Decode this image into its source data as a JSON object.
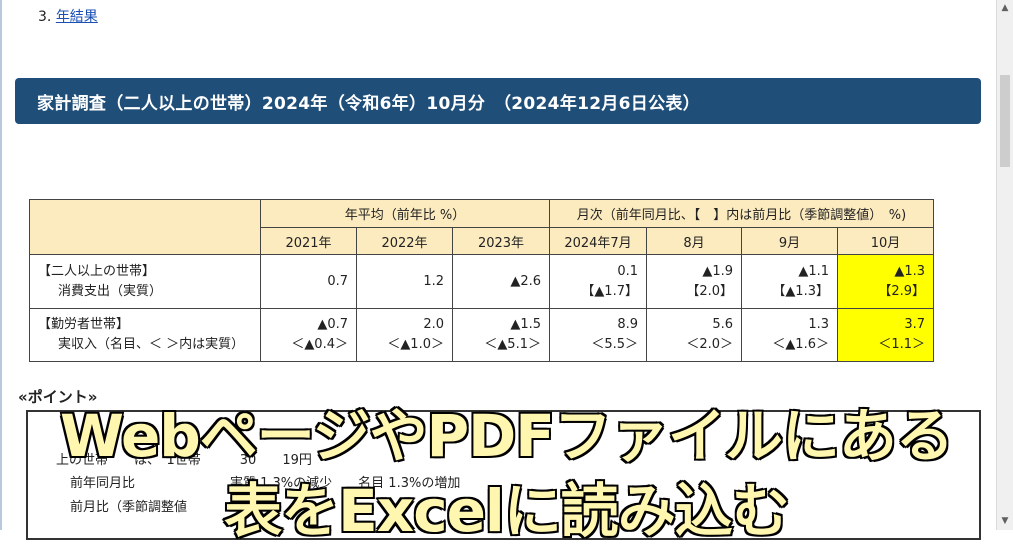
{
  "nav": {
    "number": "3.",
    "link": "年結果"
  },
  "banner": {
    "title": "家計調査（二人以上の世帯）2024年（令和6年）10月分　（2024年12月6日公表）"
  },
  "table": {
    "group_annual": "年平均（前年比 %）",
    "group_monthly": "月次（前年同月比、【　】内は前月比（季節調整値）　%)",
    "cols": [
      "2021年",
      "2022年",
      "2023年",
      "2024年7月",
      "8月",
      "9月",
      "10月"
    ],
    "rows": [
      {
        "label1": "【二人以上の世帯】",
        "label2": "消費支出（実質）",
        "vals": [
          "0.7",
          "1.2",
          "▲2.6",
          "0.1",
          "▲1.9",
          "▲1.1",
          "▲1.3"
        ],
        "subs": [
          "",
          "",
          "",
          "【▲1.7】",
          "【2.0】",
          "【▲1.3】",
          "【2.9】"
        ]
      },
      {
        "label1": "【勤労者世帯】",
        "label2": "実収入（名目、＜ ＞内は実質）",
        "vals": [
          "▲0.7",
          "2.0",
          "▲1.5",
          "8.9",
          "5.6",
          "1.3",
          "3.7"
        ],
        "subs": [
          "＜▲0.4＞",
          "＜▲1.0＞",
          "＜▲5.1＞",
          "＜5.5＞",
          "＜2.0＞",
          "＜▲1.6＞",
          "＜1.1＞"
        ]
      }
    ]
  },
  "points": {
    "heading": "«ポイント»",
    "line1": "上の世帯　　は、　1世帯　　　30　　19円",
    "line2a": "前年同月比",
    "line2b": "実質 1.3%の減少　　名目 1.3%の増加",
    "line3": "前月比（季節調整値"
  },
  "overlay": {
    "line1": "WebページやPDFファイルにある",
    "line2": "表をExcelに読み込む"
  },
  "colors": {
    "banner": "#1f4e79",
    "header_fill": "#fcebbf",
    "highlight": "#ffff00",
    "overlay_text": "#fff7b0"
  }
}
